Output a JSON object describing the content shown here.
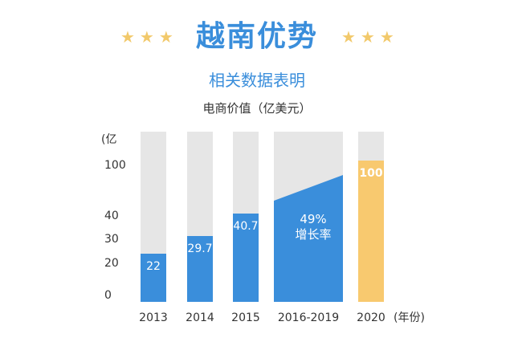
{
  "header": {
    "stars_left": "★★★",
    "title": "越南优势",
    "stars_right": "★★★",
    "subtitle": "相关数据表明"
  },
  "colors": {
    "accent": "#3a8edb",
    "bar": "#3a8edb",
    "track": "#e6e6e6",
    "highlight": "#f8c96f",
    "stars": "#f2c96b"
  },
  "chart_data": {
    "type": "bar",
    "title": "电商价值（亿美元）",
    "ylabel": "(亿",
    "xlabel": "(年份)",
    "yticks": [
      "100",
      "40",
      "30",
      "20",
      "0"
    ],
    "ylim": [
      0,
      100
    ],
    "categories": [
      "2013",
      "2014",
      "2015",
      "2016-2019",
      "2020"
    ],
    "values": [
      22,
      29.7,
      40.7,
      null,
      100
    ],
    "value_labels": [
      "22",
      "29.7",
      "40.7",
      "",
      "100"
    ],
    "growth": {
      "from": 40.7,
      "to": 100,
      "label_line1": "49%",
      "label_line2": "增长率"
    }
  }
}
